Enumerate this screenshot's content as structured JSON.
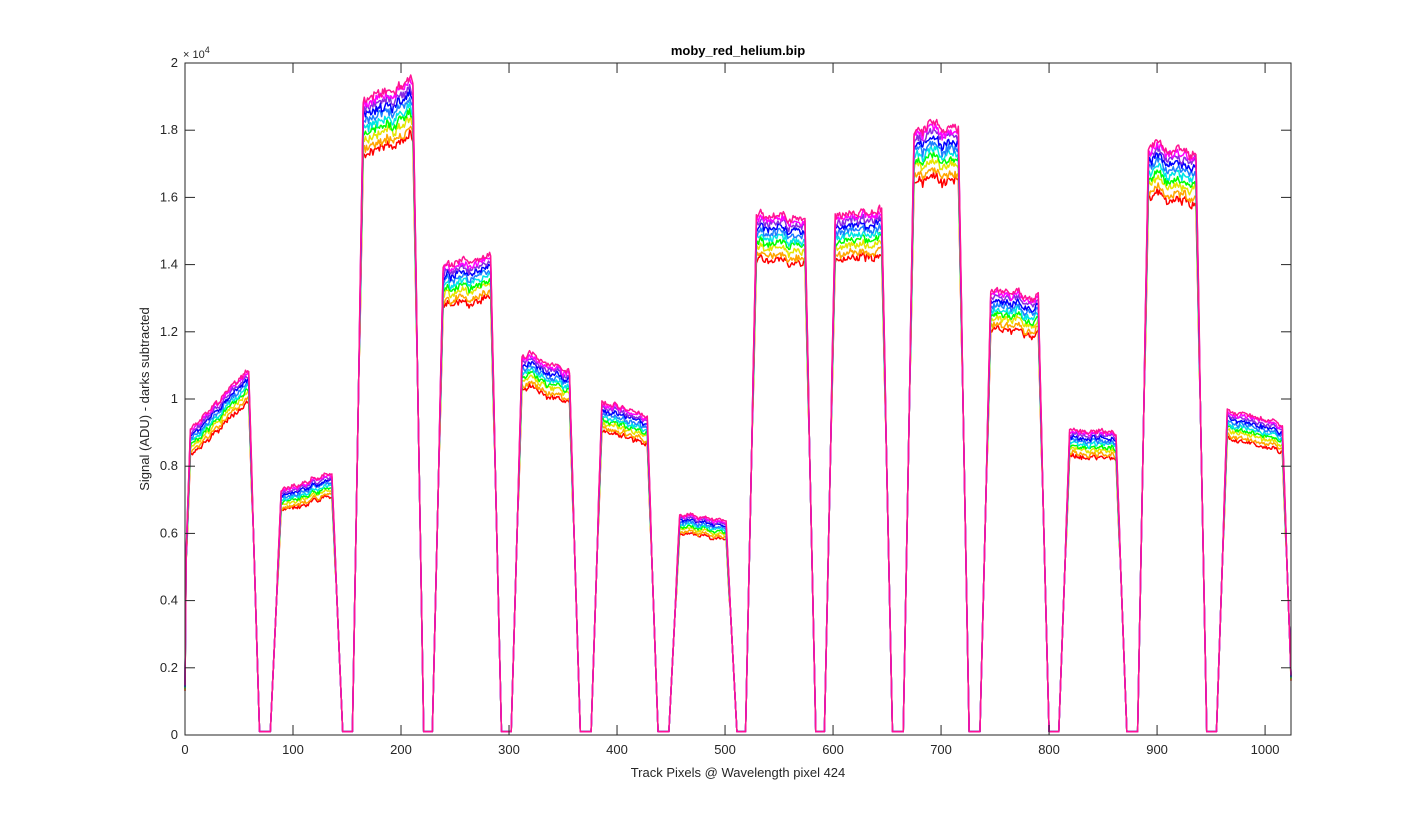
{
  "chart_data": {
    "type": "line",
    "title": "moby_red_helium.bip",
    "xlabel": "Track Pixels @ Wavelength pixel 424",
    "ylabel": "Signal (ADU) - darks subtracted",
    "xlim": [
      0,
      1024
    ],
    "ylim": [
      0,
      20000
    ],
    "x_ticks": [
      0,
      100,
      200,
      300,
      400,
      500,
      600,
      700,
      800,
      900,
      1000
    ],
    "x_tick_labels": [
      "0",
      "100",
      "200",
      "300",
      "400",
      "500",
      "600",
      "700",
      "800",
      "900",
      "1000"
    ],
    "y_ticks": [
      0,
      2000,
      4000,
      6000,
      8000,
      10000,
      12000,
      14000,
      16000,
      18000,
      20000
    ],
    "y_tick_labels": [
      "0",
      "0.2",
      "0.4",
      "0.6",
      "0.8",
      "1",
      "1.2",
      "1.4",
      "1.6",
      "1.8",
      "2"
    ],
    "y_exponent_label": "× 10",
    "y_exponent_power": "4",
    "grid": false,
    "legend": "none",
    "series_colors": [
      "#ff0000",
      "#ffa500",
      "#e5e500",
      "#00ff00",
      "#00e5e5",
      "#1e7fff",
      "#0000ff",
      "#8a2be2",
      "#ff00ff",
      "#ff1493"
    ],
    "series_offsets": [
      -0.045,
      -0.035,
      -0.02,
      -0.01,
      0.0,
      0.01,
      0.02,
      0.03,
      0.038,
      0.045
    ],
    "segments": [
      {
        "start": 0,
        "end": 64,
        "y_start": 8500,
        "y_end": 10600
      },
      {
        "start": 84,
        "end": 141,
        "y_start": 6900,
        "y_end": 7500
      },
      {
        "start": 160,
        "end": 216,
        "y_start": 18000,
        "y_end": 18700
      },
      {
        "start": 234,
        "end": 288,
        "y_start": 13300,
        "y_end": 13700
      },
      {
        "start": 307,
        "end": 361,
        "y_start": 10900,
        "y_end": 10300
      },
      {
        "start": 381,
        "end": 433,
        "y_start": 9600,
        "y_end": 9000
      },
      {
        "start": 453,
        "end": 506,
        "y_start": 6300,
        "y_end": 6100
      },
      {
        "start": 524,
        "end": 579,
        "y_start": 14800,
        "y_end": 14700
      },
      {
        "start": 597,
        "end": 650,
        "y_start": 14700,
        "y_end": 15000
      },
      {
        "start": 670,
        "end": 721,
        "y_start": 17200,
        "y_end": 17400
      },
      {
        "start": 741,
        "end": 795,
        "y_start": 12700,
        "y_end": 12500
      },
      {
        "start": 814,
        "end": 867,
        "y_start": 8700,
        "y_end": 8600
      },
      {
        "start": 887,
        "end": 941,
        "y_start": 16800,
        "y_end": 16500
      },
      {
        "start": 960,
        "end": 1021,
        "y_start": 9300,
        "y_end": 8800
      }
    ],
    "baseline": 100,
    "edge_values": {
      "x0": 1400,
      "x1024": 1700
    }
  }
}
